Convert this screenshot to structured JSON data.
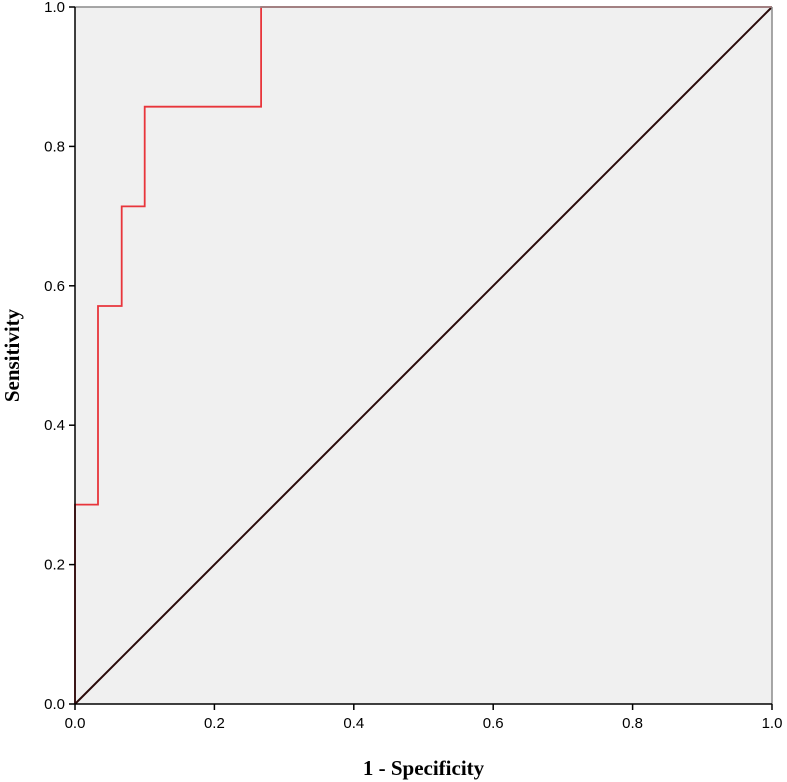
{
  "chart_data": {
    "type": "line",
    "title": "",
    "xlabel": "1 - Specificity",
    "ylabel": "Sensitivity",
    "xlim": [
      0.0,
      1.0
    ],
    "ylim": [
      0.0,
      1.0
    ],
    "xticks": [
      "0.0",
      "0.2",
      "0.4",
      "0.6",
      "0.8",
      "1.0"
    ],
    "yticks": [
      "0.0",
      "0.2",
      "0.4",
      "0.6",
      "0.8",
      "1.0"
    ],
    "grid": false,
    "legend": "none",
    "background_color": "#f0f0f0",
    "series": [
      {
        "color": "#e8353b",
        "x": [
          0.0,
          0.0,
          0.033,
          0.033,
          0.067,
          0.067,
          0.1,
          0.1,
          0.267,
          0.267,
          1.0
        ],
        "y": [
          0.0,
          0.286,
          0.286,
          0.571,
          0.571,
          0.714,
          0.714,
          0.857,
          0.857,
          1.0,
          1.0
        ]
      },
      {
        "color": "#2a0a0a",
        "x": [
          0.0,
          1.0
        ],
        "y": [
          0.0,
          1.0
        ]
      }
    ]
  }
}
